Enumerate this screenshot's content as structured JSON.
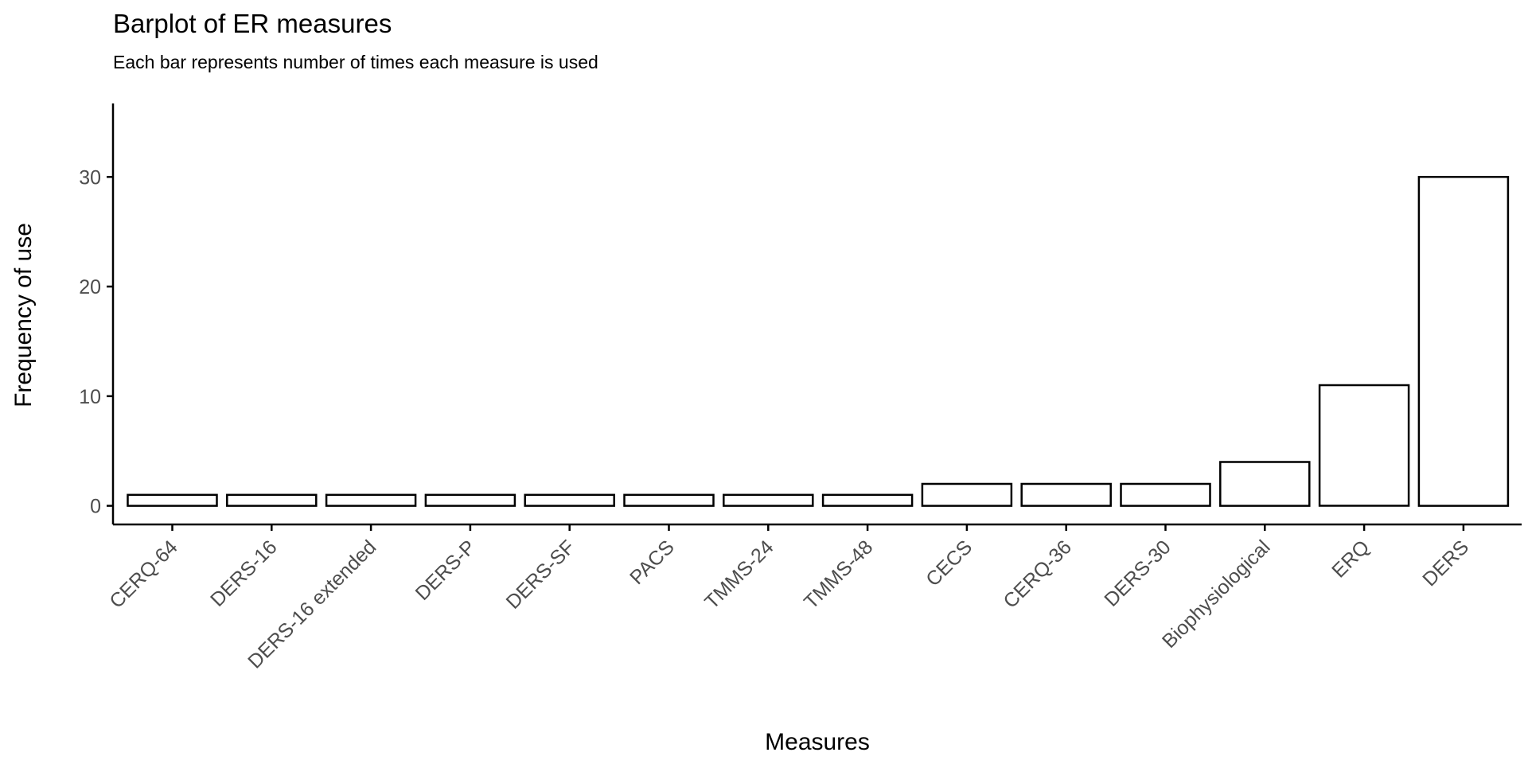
{
  "chart_data": {
    "type": "bar",
    "title": "Barplot of ER measures",
    "subtitle": "Each bar represents number of times each measure is used",
    "xlabel": "Measures",
    "ylabel": "Frequency of use",
    "categories": [
      "CERQ-64",
      "DERS-16",
      "DERS-16 extended",
      "DERS-P",
      "DERS-SF",
      "PACS",
      "TMMS-24",
      "TMMS-48",
      "CECS",
      "CERQ-36",
      "DERS-30",
      "Biophysiological",
      "ERQ",
      "DERS"
    ],
    "values": [
      1,
      1,
      1,
      1,
      1,
      1,
      1,
      1,
      2,
      2,
      2,
      4,
      11,
      30
    ],
    "yticks": [
      "0",
      "10",
      "20",
      "30"
    ],
    "ylim": [
      -1.7,
      36.7
    ],
    "bar_fill": "#ffffff",
    "bar_stroke": "#000000",
    "tick_label_color": "#4d4d4d",
    "grid": false,
    "legend": "none"
  }
}
